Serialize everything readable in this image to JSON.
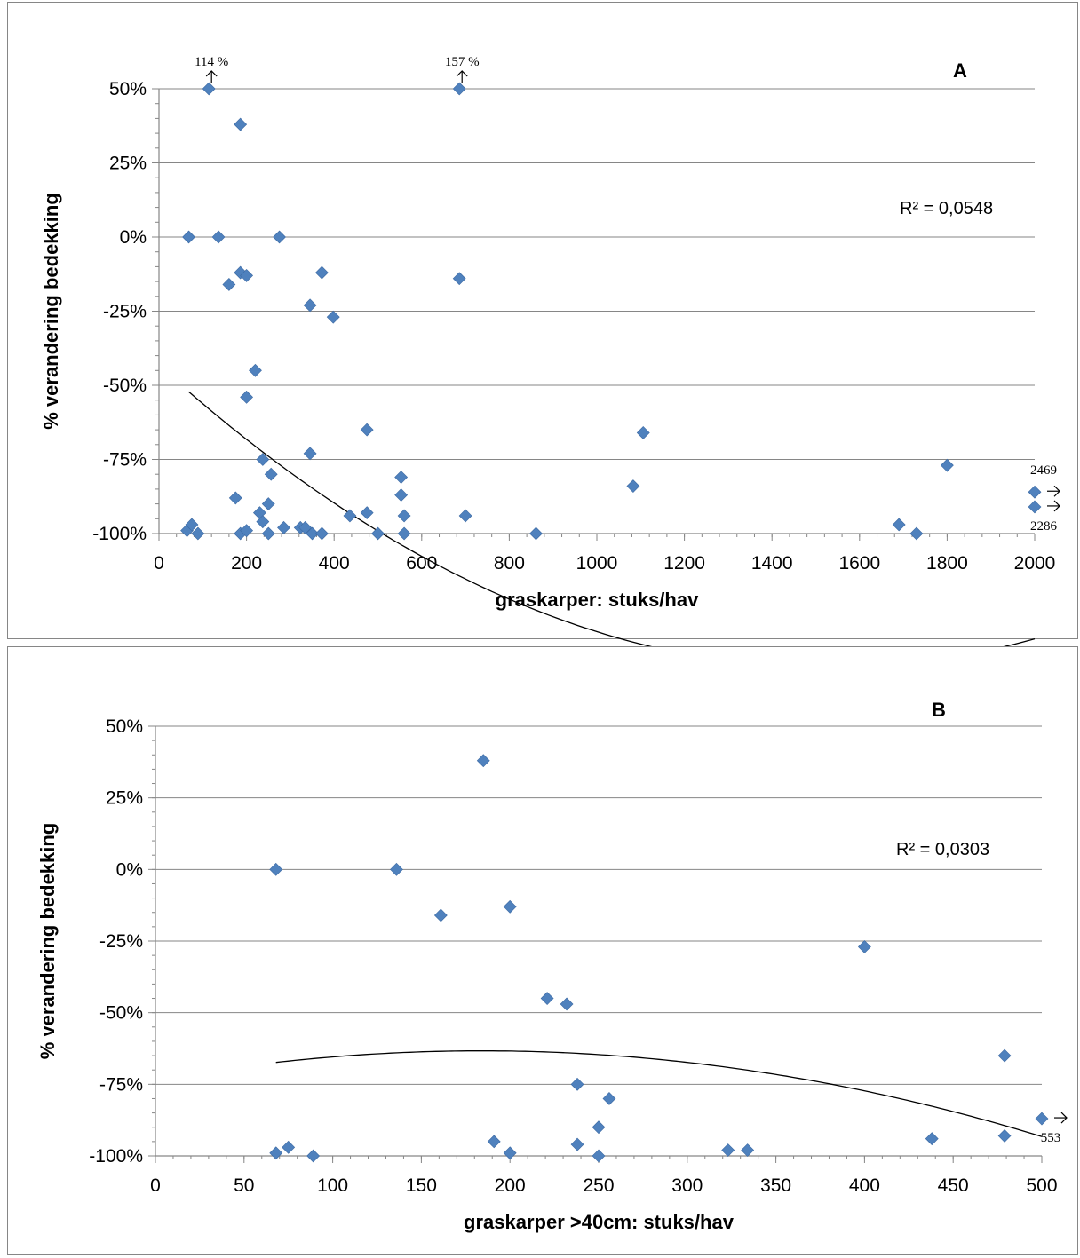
{
  "chart_data": [
    {
      "type": "scatter",
      "panel_label": "A",
      "xlabel": "graskarper: stuks/hav",
      "ylabel": "% verandering bedekking",
      "xlim": [
        0,
        2000
      ],
      "ylim": [
        -100,
        50
      ],
      "xticks": [
        0,
        200,
        400,
        600,
        800,
        1000,
        1200,
        1400,
        1600,
        1800,
        2000
      ],
      "xtick_labels": [
        "0",
        "200",
        "400",
        "600",
        "800",
        "1000",
        "1200",
        "1400",
        "1600",
        "1800",
        "2000"
      ],
      "yticks": [
        50,
        25,
        0,
        -25,
        -50,
        -75,
        -100
      ],
      "ytick_labels": [
        "50%",
        "25%",
        "0%",
        "-25%",
        "-50%",
        "-75%",
        "-100%"
      ],
      "grid": "horizontal",
      "marker_color": "#4F81BD",
      "r2_label": "R² = 0,0548",
      "trendline": {
        "type": "polynomial",
        "order": 2,
        "x_range": [
          68,
          2000
        ],
        "coefficients": [
          -43.3,
          -0.1335,
          4.37e-05
        ]
      },
      "annotations": [
        {
          "text": "114 %",
          "x": 114,
          "y": 50,
          "arrow": "up"
        },
        {
          "text": "157 %",
          "x": 686,
          "y": 50,
          "arrow": "up"
        },
        {
          "text": "2469",
          "x": 2000,
          "y": -86,
          "arrow": "right"
        },
        {
          "text": "2286",
          "x": 2000,
          "y": -91,
          "arrow": "right"
        }
      ],
      "points": [
        [
          114,
          50
        ],
        [
          186,
          38
        ],
        [
          686,
          50
        ],
        [
          68,
          0
        ],
        [
          136,
          0
        ],
        [
          275,
          0
        ],
        [
          186,
          -12
        ],
        [
          200,
          -13
        ],
        [
          160,
          -16
        ],
        [
          372,
          -12
        ],
        [
          686,
          -14
        ],
        [
          345,
          -23
        ],
        [
          398,
          -27
        ],
        [
          220,
          -45
        ],
        [
          200,
          -54
        ],
        [
          475,
          -65
        ],
        [
          1106,
          -66
        ],
        [
          345,
          -73
        ],
        [
          237,
          -75
        ],
        [
          256,
          -80
        ],
        [
          1800,
          -77
        ],
        [
          175,
          -88
        ],
        [
          250,
          -90
        ],
        [
          553,
          -81
        ],
        [
          553,
          -87
        ],
        [
          1083,
          -84
        ],
        [
          2000,
          -86
        ],
        [
          2000,
          -91
        ],
        [
          230,
          -93
        ],
        [
          237,
          -96
        ],
        [
          436,
          -94
        ],
        [
          475,
          -93
        ],
        [
          560,
          -94
        ],
        [
          700,
          -94
        ],
        [
          64,
          -99
        ],
        [
          75,
          -97
        ],
        [
          89,
          -100
        ],
        [
          186,
          -100
        ],
        [
          200,
          -99
        ],
        [
          250,
          -100
        ],
        [
          285,
          -98
        ],
        [
          323,
          -98
        ],
        [
          334,
          -98
        ],
        [
          350,
          -100
        ],
        [
          372,
          -100
        ],
        [
          500,
          -100
        ],
        [
          560,
          -100
        ],
        [
          861,
          -100
        ],
        [
          1690,
          -97
        ],
        [
          1730,
          -100
        ]
      ]
    },
    {
      "type": "scatter",
      "panel_label": "B",
      "xlabel": "graskarper >40cm:   stuks/hav",
      "ylabel": "% verandering bedekking",
      "xlim": [
        0,
        500
      ],
      "ylim": [
        -100,
        50
      ],
      "xticks": [
        0,
        50,
        100,
        150,
        200,
        250,
        300,
        350,
        400,
        450,
        500
      ],
      "xtick_labels": [
        "0",
        "50",
        "100",
        "150",
        "200",
        "250",
        "300",
        "350",
        "400",
        "450",
        "500"
      ],
      "yticks": [
        50,
        25,
        0,
        -25,
        -50,
        -75,
        -100
      ],
      "ytick_labels": [
        "50%",
        "25%",
        "0%",
        "-25%",
        "-50%",
        "-75%",
        "-100%"
      ],
      "grid": "horizontal",
      "marker_color": "#4F81BD",
      "r2_label": "R² = 0,0303",
      "trendline": {
        "type": "polynomial",
        "order": 2,
        "x_range": [
          68,
          500
        ],
        "coefficients": [
          -73.5,
          0.1105,
          -0.0003
        ]
      },
      "annotations": [
        {
          "text": "553",
          "x": 500,
          "y": -87,
          "arrow": "right"
        }
      ],
      "points": [
        [
          185,
          38
        ],
        [
          68,
          0
        ],
        [
          136,
          0
        ],
        [
          161,
          -16
        ],
        [
          200,
          -13
        ],
        [
          221,
          -45
        ],
        [
          232,
          -47
        ],
        [
          400,
          -27
        ],
        [
          238,
          -75
        ],
        [
          256,
          -80
        ],
        [
          479,
          -65
        ],
        [
          500,
          -87
        ],
        [
          250,
          -90
        ],
        [
          191,
          -95
        ],
        [
          238,
          -96
        ],
        [
          200,
          -99
        ],
        [
          250,
          -100
        ],
        [
          68,
          -99
        ],
        [
          75,
          -97
        ],
        [
          89,
          -100
        ],
        [
          323,
          -98
        ],
        [
          334,
          -98
        ],
        [
          438,
          -94
        ],
        [
          479,
          -93
        ]
      ]
    }
  ]
}
